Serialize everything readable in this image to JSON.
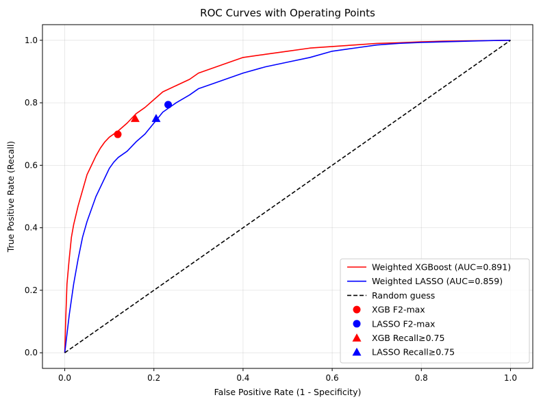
{
  "chart_data": {
    "type": "line",
    "title": "ROC Curves with Operating Points",
    "xlabel": "False Positive Rate (1 - Specificity)",
    "ylabel": "True Positive Rate (Recall)",
    "xlim": [
      -0.05,
      1.05
    ],
    "ylim": [
      -0.05,
      1.05
    ],
    "xticks": [
      0.0,
      0.2,
      0.4,
      0.6,
      0.8,
      1.0
    ],
    "yticks": [
      0.0,
      0.2,
      0.4,
      0.6,
      0.8,
      1.0
    ],
    "xtick_labels": [
      "0.0",
      "0.2",
      "0.4",
      "0.6",
      "0.8",
      "1.0"
    ],
    "ytick_labels": [
      "0.0",
      "0.2",
      "0.4",
      "0.6",
      "0.8",
      "1.0"
    ],
    "grid": true,
    "legend_position": "lower-right",
    "series": [
      {
        "name": "Weighted XGBoost (AUC=0.891)",
        "kind": "line",
        "color": "#ff0000",
        "style": "solid",
        "x": [
          0.0,
          0.002,
          0.005,
          0.01,
          0.015,
          0.02,
          0.03,
          0.04,
          0.05,
          0.06,
          0.07,
          0.08,
          0.09,
          0.1,
          0.12,
          0.14,
          0.16,
          0.18,
          0.2,
          0.22,
          0.25,
          0.28,
          0.3,
          0.33,
          0.36,
          0.4,
          0.45,
          0.5,
          0.55,
          0.6,
          0.65,
          0.7,
          0.75,
          0.8,
          0.85,
          0.9,
          0.95,
          1.0
        ],
        "y": [
          0.0,
          0.1,
          0.22,
          0.3,
          0.37,
          0.41,
          0.47,
          0.52,
          0.57,
          0.6,
          0.63,
          0.655,
          0.675,
          0.69,
          0.71,
          0.735,
          0.765,
          0.785,
          0.81,
          0.835,
          0.855,
          0.875,
          0.895,
          0.91,
          0.925,
          0.945,
          0.955,
          0.965,
          0.975,
          0.98,
          0.985,
          0.99,
          0.992,
          0.995,
          0.997,
          0.998,
          0.999,
          1.0
        ]
      },
      {
        "name": "Weighted LASSO (AUC=0.859)",
        "kind": "line",
        "color": "#0000ff",
        "style": "solid",
        "x": [
          0.0,
          0.005,
          0.01,
          0.02,
          0.03,
          0.04,
          0.05,
          0.06,
          0.07,
          0.08,
          0.09,
          0.1,
          0.11,
          0.12,
          0.14,
          0.16,
          0.18,
          0.2,
          0.22,
          0.25,
          0.28,
          0.3,
          0.33,
          0.36,
          0.4,
          0.45,
          0.5,
          0.55,
          0.6,
          0.65,
          0.7,
          0.75,
          0.8,
          0.85,
          0.9,
          0.95,
          1.0
        ],
        "y": [
          0.0,
          0.06,
          0.12,
          0.22,
          0.3,
          0.37,
          0.42,
          0.46,
          0.5,
          0.53,
          0.56,
          0.59,
          0.61,
          0.625,
          0.645,
          0.675,
          0.7,
          0.735,
          0.77,
          0.8,
          0.825,
          0.845,
          0.86,
          0.875,
          0.895,
          0.915,
          0.93,
          0.945,
          0.965,
          0.975,
          0.985,
          0.99,
          0.993,
          0.995,
          0.997,
          0.999,
          1.0
        ]
      },
      {
        "name": "Random guess",
        "kind": "line",
        "color": "#000000",
        "style": "dashed",
        "x": [
          0.0,
          1.0
        ],
        "y": [
          0.0,
          1.0
        ]
      },
      {
        "name": "XGB F2-max",
        "kind": "scatter",
        "marker": "circle",
        "color": "#ff0000",
        "x": [
          0.119
        ],
        "y": [
          0.699
        ]
      },
      {
        "name": "LASSO F2-max",
        "kind": "scatter",
        "marker": "circle",
        "color": "#0000ff",
        "x": [
          0.232
        ],
        "y": [
          0.794
        ]
      },
      {
        "name": "XGB Recall≥0.75",
        "kind": "scatter",
        "marker": "triangle",
        "color": "#ff0000",
        "x": [
          0.158
        ],
        "y": [
          0.75
        ]
      },
      {
        "name": "LASSO Recall≥0.75",
        "kind": "scatter",
        "marker": "triangle",
        "color": "#0000ff",
        "x": [
          0.205
        ],
        "y": [
          0.75
        ]
      }
    ]
  }
}
